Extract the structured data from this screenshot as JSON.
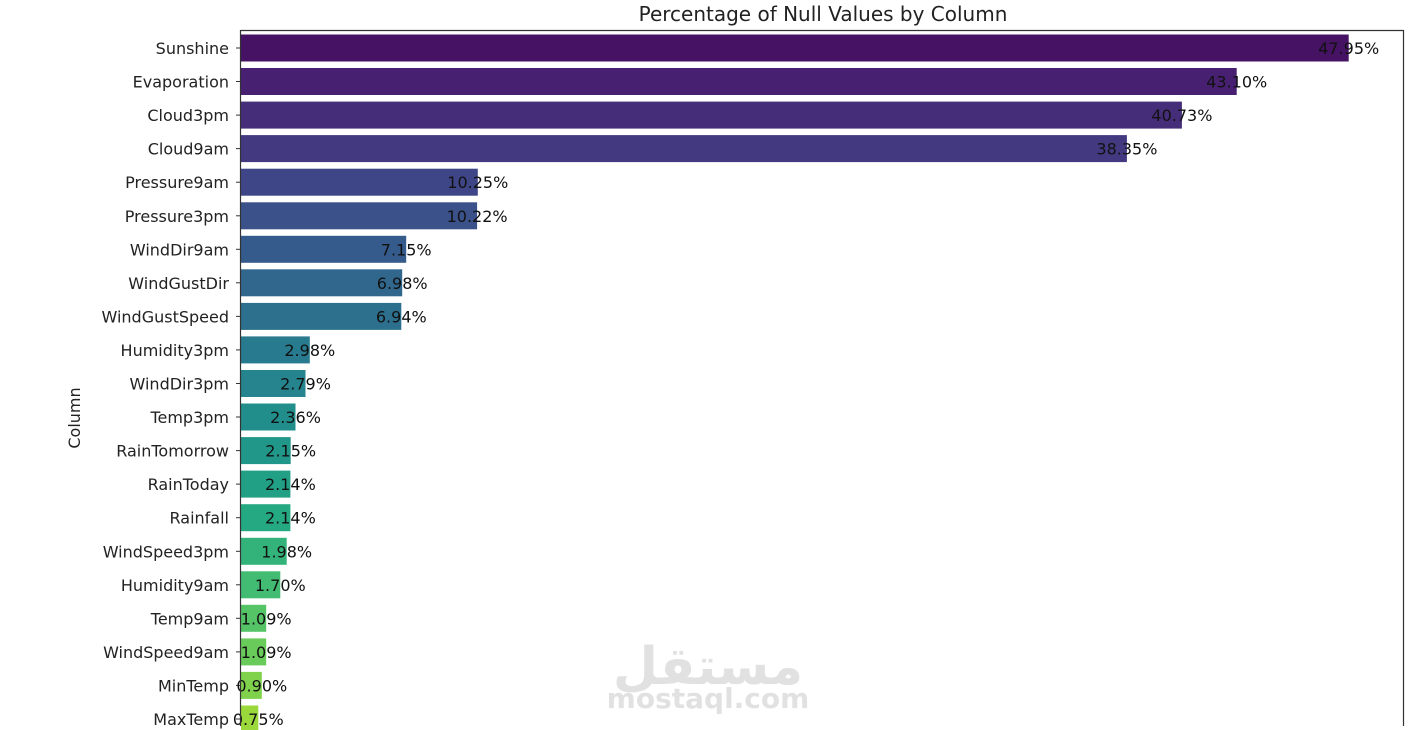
{
  "chart_data": {
    "type": "bar",
    "orientation": "horizontal",
    "title": "Percentage of Null Values by Column",
    "ylabel": "Column",
    "xlabel": "",
    "categories": [
      "Sunshine",
      "Evaporation",
      "Cloud3pm",
      "Cloud9am",
      "Pressure9am",
      "Pressure3pm",
      "WindDir9am",
      "WindGustDir",
      "WindGustSpeed",
      "Humidity3pm",
      "WindDir3pm",
      "Temp3pm",
      "RainTomorrow",
      "RainToday",
      "Rainfall",
      "WindSpeed3pm",
      "Humidity9am",
      "Temp9am",
      "WindSpeed9am",
      "MinTemp",
      "MaxTemp"
    ],
    "values": [
      47.95,
      43.1,
      40.73,
      38.35,
      10.25,
      10.22,
      7.15,
      6.98,
      6.94,
      2.98,
      2.79,
      2.36,
      2.15,
      2.14,
      2.14,
      1.98,
      1.7,
      1.09,
      1.09,
      0.9,
      0.75
    ],
    "data_labels": [
      "47.95%",
      "43.10%",
      "40.73%",
      "38.35%",
      "10.25%",
      "10.22%",
      "7.15%",
      "6.98%",
      "6.94%",
      "2.98%",
      "2.79%",
      "2.36%",
      "2.15%",
      "2.14%",
      "2.14%",
      "1.98%",
      "1.70%",
      "1.09%",
      "1.09%",
      "0.90%",
      "0.75%"
    ],
    "xlim": [
      0,
      50.3
    ],
    "colormap": "viridis",
    "grid": false,
    "legend": "none"
  },
  "watermark": {
    "arabic": "مستقل",
    "latin": "mostaql.com"
  }
}
